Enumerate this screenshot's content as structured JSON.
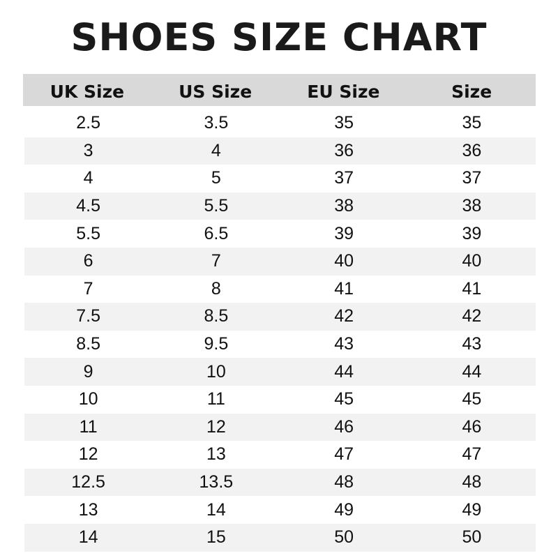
{
  "title": "SHOES SIZE CHART",
  "headers": [
    "UK Size",
    "US Size",
    "EU Size",
    "Size"
  ],
  "rows": [
    [
      "2.5",
      "3.5",
      "35",
      "35"
    ],
    [
      "3",
      "4",
      "36",
      "36"
    ],
    [
      "4",
      "5",
      "37",
      "37"
    ],
    [
      "4.5",
      "5.5",
      "38",
      "38"
    ],
    [
      "5.5",
      "6.5",
      "39",
      "39"
    ],
    [
      "6",
      "7",
      "40",
      "40"
    ],
    [
      "7",
      "8",
      "41",
      "41"
    ],
    [
      "7.5",
      "8.5",
      "42",
      "42"
    ],
    [
      "8.5",
      "9.5",
      "43",
      "43"
    ],
    [
      "9",
      "10",
      "44",
      "44"
    ],
    [
      "10",
      "11",
      "45",
      "45"
    ],
    [
      "11",
      "12",
      "46",
      "46"
    ],
    [
      "12",
      "13",
      "47",
      "47"
    ],
    [
      "12.5",
      "13.5",
      "48",
      "48"
    ],
    [
      "13",
      "14",
      "49",
      "49"
    ],
    [
      "14",
      "15",
      "50",
      "50"
    ]
  ],
  "colors": {
    "header_bg": "#d9d9d9",
    "stripe_bg": "#f2f2f2",
    "text": "#111111"
  }
}
